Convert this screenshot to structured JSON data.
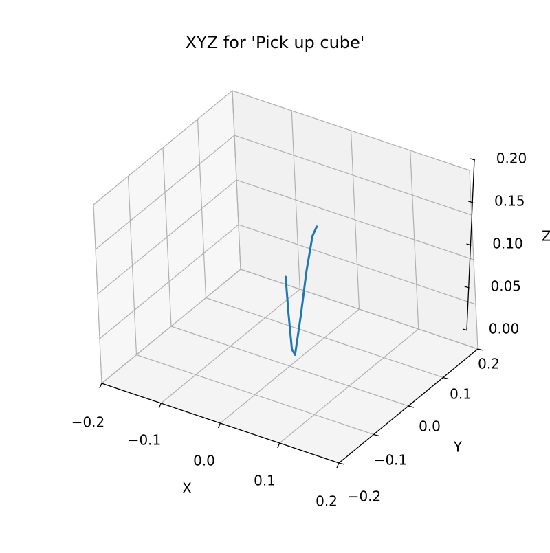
{
  "chart_data": {
    "type": "line",
    "title": "XYZ for 'Pick up cube'",
    "xlabel": "X",
    "ylabel": "Y",
    "zlabel": "Z",
    "xlim": [
      -0.2,
      0.2
    ],
    "ylim": [
      -0.2,
      0.2
    ],
    "zlim": [
      0.0,
      0.2
    ],
    "x_ticks": [
      "−0.2",
      "−0.1",
      "0.0",
      "0.1",
      "0.2"
    ],
    "y_ticks": [
      "−0.2",
      "−0.1",
      "0.0",
      "0.1",
      "0.2"
    ],
    "z_ticks": [
      "0.00",
      "0.05",
      "0.10",
      "0.15",
      "0.20"
    ],
    "grid": true,
    "series": [
      {
        "color": "#1f77b4",
        "x": [
          0.0,
          0.002,
          0.005,
          0.01,
          0.02,
          0.03,
          0.04,
          0.045
        ],
        "y": [
          0.0,
          0.0,
          0.0,
          0.0,
          0.005,
          0.01,
          0.015,
          0.02
        ],
        "z": [
          0.1,
          0.06,
          0.02,
          0.015,
          0.06,
          0.11,
          0.15,
          0.16
        ]
      }
    ]
  }
}
